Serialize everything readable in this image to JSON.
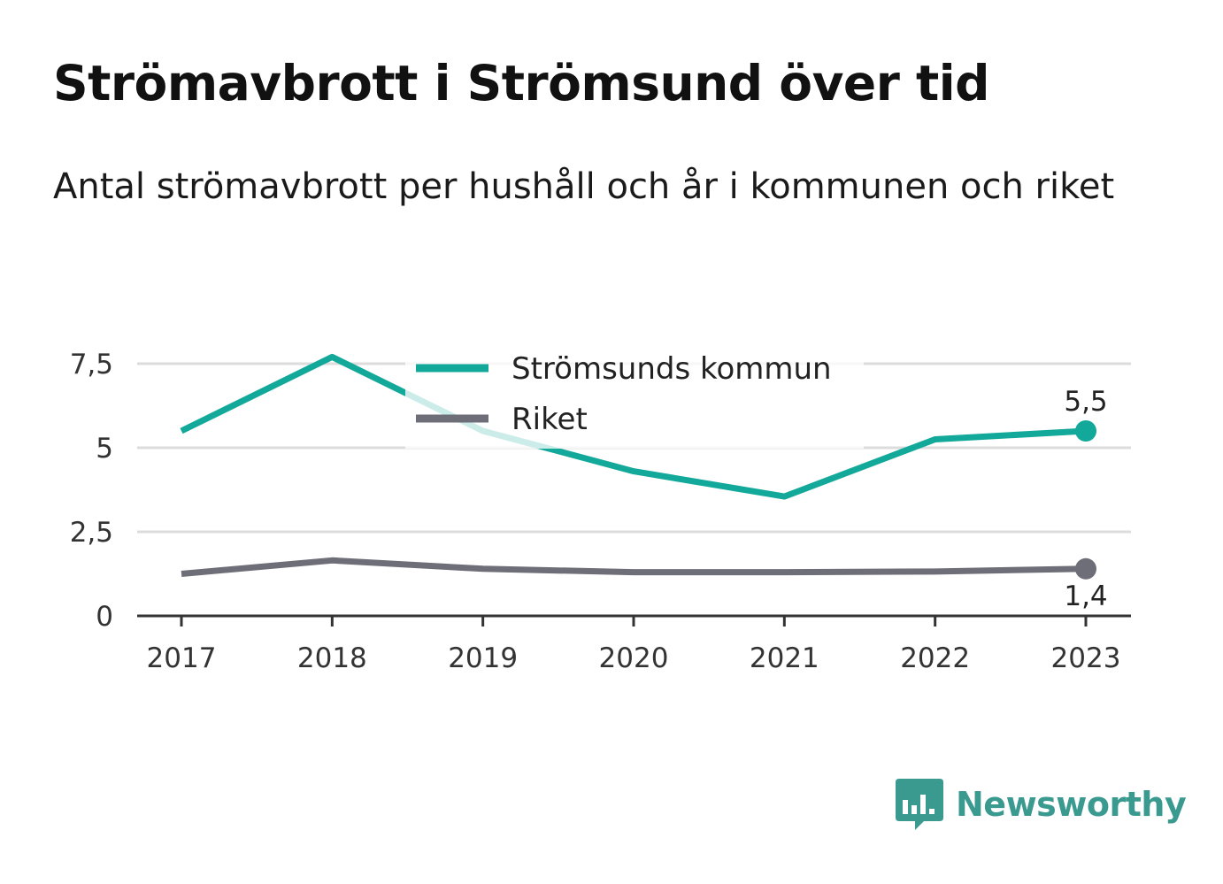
{
  "title": "Strömavbrott i Strömsund över tid",
  "subtitle": "Antal strömavbrott per hushåll och år i kommunen och riket",
  "brand": {
    "name": "Newsworthy",
    "icon": "newsworthy-logo-icon",
    "color": "#3a9a90"
  },
  "chart_data": {
    "type": "line",
    "title": "Strömavbrott i Strömsund över tid",
    "subtitle": "Antal strömavbrott per hushåll och år i kommunen och riket",
    "x": [
      "2017",
      "2018",
      "2019",
      "2020",
      "2021",
      "2022",
      "2023"
    ],
    "ylim": [
      0,
      7.5
    ],
    "yticks": [
      0,
      2.5,
      5,
      7.5
    ],
    "ytick_labels": [
      "0",
      "2,5",
      "5",
      "7,5"
    ],
    "grid": true,
    "legend_position": "top-center",
    "series": [
      {
        "name": "Strömsunds kommun",
        "color": "#12a89a",
        "values": [
          5.5,
          7.7,
          5.5,
          4.3,
          3.55,
          5.25,
          5.5
        ],
        "end_label": "5,5"
      },
      {
        "name": "Riket",
        "color": "#6e6e78",
        "values": [
          1.25,
          1.65,
          1.4,
          1.3,
          1.3,
          1.32,
          1.4
        ],
        "end_label": "1,4"
      }
    ]
  }
}
